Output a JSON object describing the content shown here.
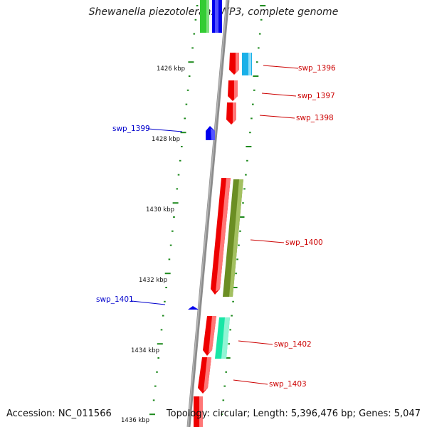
{
  "title": "Shewanella piezotolerans WP3, complete genome",
  "footer": {
    "accession": "Accession: NC_011566",
    "summary": "Topology: circular; Length: 5,396,476 bp; Genes: 5,047"
  },
  "colors": {
    "backbone": "#8c8c8c",
    "tick": "#1e8a1e",
    "forward_label": "#cc0000",
    "reverse_label": "#0000cc"
  },
  "kbp_labels": [
    "1426 kbp",
    "1428 kbp",
    "1430 kbp",
    "1432 kbp",
    "1434 kbp",
    "1436 kbp"
  ],
  "genes": [
    {
      "label": "swp_1396",
      "strand": "forward"
    },
    {
      "label": "swp_1397",
      "strand": "forward"
    },
    {
      "label": "swp_1398",
      "strand": "forward"
    },
    {
      "label": "swp_1399",
      "strand": "reverse"
    },
    {
      "label": "swp_1400",
      "strand": "forward"
    },
    {
      "label": "swp_1401",
      "strand": "reverse"
    },
    {
      "label": "swp_1402",
      "strand": "forward"
    },
    {
      "label": "swp_1403",
      "strand": "forward"
    }
  ]
}
